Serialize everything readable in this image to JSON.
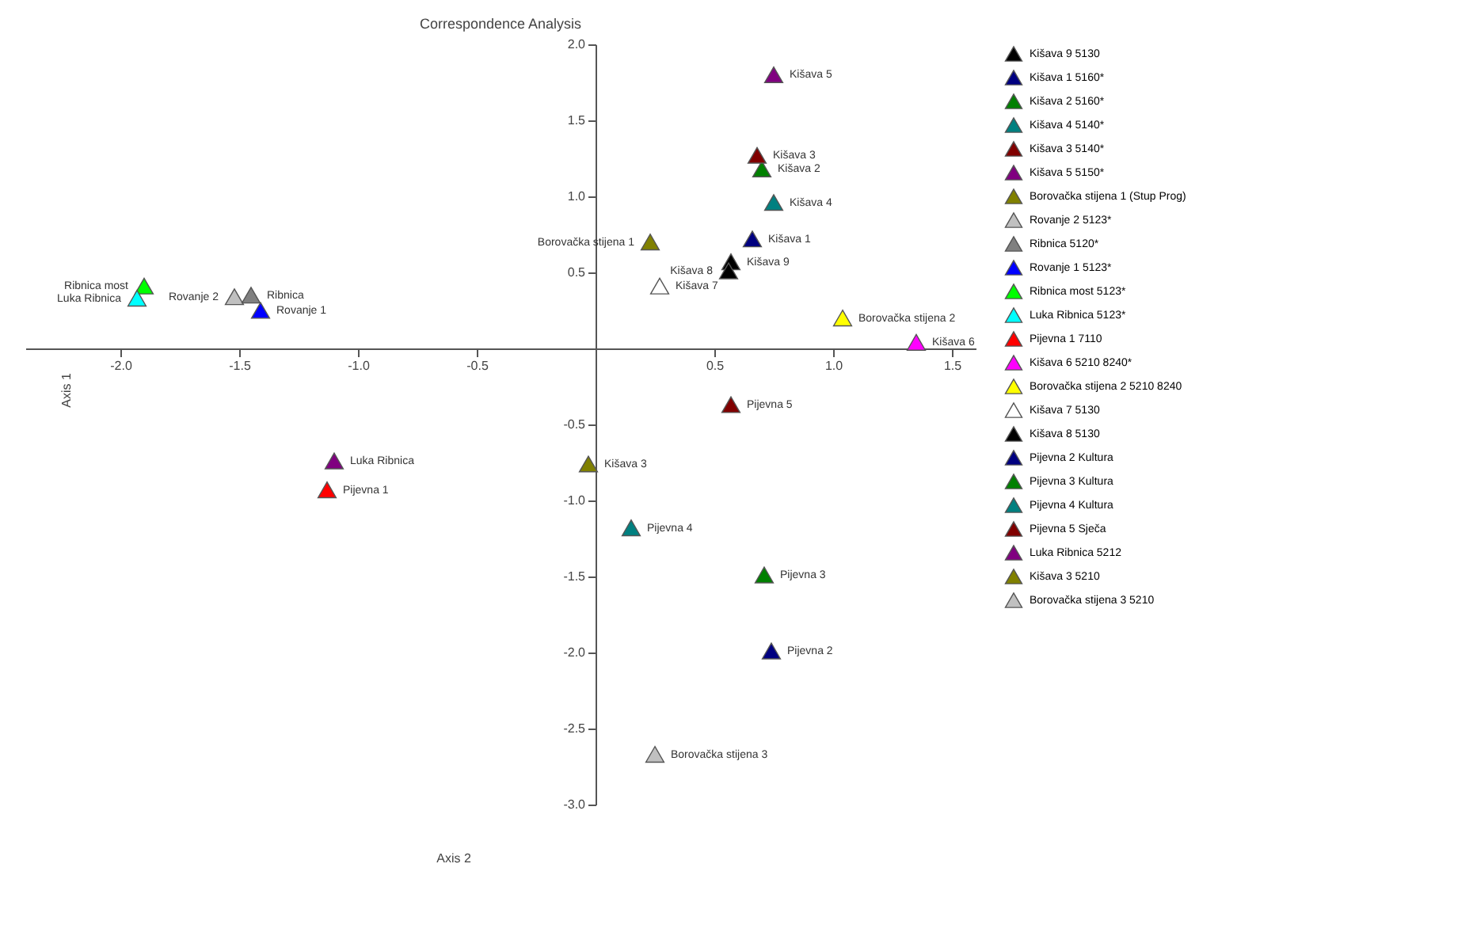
{
  "chart_data": {
    "type": "scatter",
    "title": "Correspondence Analysis",
    "xlabel": "Axis 2",
    "ylabel": "Axis 1",
    "marker": "triangle",
    "legend": "right",
    "xlim": [
      -2.4,
      1.6
    ],
    "ylim": [
      -3.0,
      2.0
    ],
    "xticks": [
      {
        "value": -2,
        "label": "-2.0"
      },
      {
        "value": -1.5,
        "label": "-1.5"
      },
      {
        "value": -1,
        "label": "-1.0"
      },
      {
        "value": -0.5,
        "label": "-0.5"
      },
      {
        "value": 0.5,
        "label": "0.5"
      },
      {
        "value": 1,
        "label": "1.0"
      },
      {
        "value": 1.5,
        "label": "1.5"
      }
    ],
    "yticks": [
      {
        "value": 2,
        "label": "2.0"
      },
      {
        "value": 1.5,
        "label": "1.5"
      },
      {
        "value": 1,
        "label": "1.0"
      },
      {
        "value": 0.5,
        "label": "0.5"
      },
      {
        "value": -0.5,
        "label": "-0.5"
      },
      {
        "value": -1,
        "label": "-1.0"
      },
      {
        "value": -1.5,
        "label": "-1.5"
      },
      {
        "value": -2,
        "label": "-2.0"
      },
      {
        "value": -2.5,
        "label": "-2.5"
      },
      {
        "value": -3,
        "label": "-3.0"
      }
    ],
    "series": [
      {
        "name": "Kišava 9 5130",
        "color": "#000000",
        "x": [
          0.57
        ],
        "values": [
          0.57
        ]
      },
      {
        "name": "Kišava 1 5160*",
        "color": "#000080",
        "x": [
          0.66
        ],
        "values": [
          0.72
        ]
      },
      {
        "name": "Kišava 2 5160*",
        "color": "#008000",
        "x": [
          0.7
        ],
        "values": [
          1.18
        ]
      },
      {
        "name": "Kišava 4 5140*",
        "color": "#008080",
        "x": [
          0.75
        ],
        "values": [
          0.96
        ]
      },
      {
        "name": "Kišava 3 5140*",
        "color": "#800000",
        "x": [
          0.68
        ],
        "values": [
          1.27
        ]
      },
      {
        "name": "Kišava 5 5150*",
        "color": "#800080",
        "x": [
          0.75
        ],
        "values": [
          1.8
        ]
      },
      {
        "name": "Borovačka stijena 1 (Stup Prog)",
        "color": "#808000",
        "x": [
          0.23
        ],
        "values": [
          0.7
        ]
      },
      {
        "name": "Rovanje 2 5123*",
        "color": "#c0c0c0",
        "x": [
          -1.52
        ],
        "values": [
          0.34
        ]
      },
      {
        "name": "Ribnica 5120*",
        "color": "#808080",
        "x": [
          -1.45
        ],
        "values": [
          0.35
        ]
      },
      {
        "name": "Rovanje 1 5123*",
        "color": "#0000ff",
        "x": [
          -1.41
        ],
        "values": [
          0.25
        ]
      },
      {
        "name": "Ribnica most 5123*",
        "color": "#00ff00",
        "x": [
          -1.9
        ],
        "values": [
          0.41
        ]
      },
      {
        "name": "Luka Ribnica 5123*",
        "color": "#00ffff",
        "x": [
          -1.93
        ],
        "values": [
          0.33
        ]
      },
      {
        "name": "Pijevna 1 7110",
        "color": "#ff0000",
        "x": [
          -1.13
        ],
        "values": [
          -0.93
        ]
      },
      {
        "name": "Kišava 6 5210 8240*",
        "color": "#ff00ff",
        "x": [
          1.35
        ],
        "values": [
          0.04
        ]
      },
      {
        "name": "Borovačka stijena 2 5210 8240",
        "color": "#ffff00",
        "x": [
          1.04
        ],
        "values": [
          0.2
        ]
      },
      {
        "name": "Kišava 7 5130",
        "color": "#ffffff",
        "x": [
          0.27
        ],
        "values": [
          0.41
        ]
      },
      {
        "name": "Kišava 8 5130",
        "color": "#000000",
        "x": [
          0.56
        ],
        "values": [
          0.51
        ]
      },
      {
        "name": "Pijevna 2 Kultura",
        "color": "#000080",
        "x": [
          0.74
        ],
        "values": [
          -1.99
        ]
      },
      {
        "name": "Pijevna 3 Kultura",
        "color": "#008000",
        "x": [
          0.71
        ],
        "values": [
          -1.49
        ]
      },
      {
        "name": "Pijevna 4 Kultura",
        "color": "#008080",
        "x": [
          0.15
        ],
        "values": [
          -1.18
        ]
      },
      {
        "name": "Pijevna 5 Sječa",
        "color": "#800000",
        "x": [
          0.57
        ],
        "values": [
          -0.37
        ]
      },
      {
        "name": "Luka Ribnica 5212",
        "color": "#800080",
        "x": [
          -1.1
        ],
        "values": [
          -0.74
        ]
      },
      {
        "name": "Kišava 3 5210",
        "color": "#808000",
        "x": [
          -0.03
        ],
        "values": [
          -0.76
        ]
      },
      {
        "name": "Borovačka stijena 3 5210",
        "color": "#c0c0c0",
        "x": [
          0.25
        ],
        "values": [
          -2.67
        ]
      }
    ],
    "annotations": [
      {
        "text": "Ribnica most",
        "x": -1.9,
        "y": 0.41
      },
      {
        "text": "Luka Ribnica",
        "x": -1.93,
        "y": 0.33
      },
      {
        "text": "Rovanje 2",
        "x": -1.52,
        "y": 0.34
      },
      {
        "text": "Ribnica",
        "x": -1.45,
        "y": 0.35
      },
      {
        "text": "Rovanje 1",
        "x": -1.41,
        "y": 0.25
      },
      {
        "text": "Luka Ribnica",
        "x": -1.1,
        "y": -0.74
      },
      {
        "text": "Pijevna 1",
        "x": -1.13,
        "y": -0.93
      },
      {
        "text": "Kišava 3",
        "x": -0.03,
        "y": -0.76
      },
      {
        "text": "Pijevna 4",
        "x": 0.15,
        "y": -1.18
      },
      {
        "text": "Borovačka stijena 3",
        "x": 0.25,
        "y": -2.67
      },
      {
        "text": "Pijevna 3",
        "x": 0.71,
        "y": -1.49
      },
      {
        "text": "Pijevna 2",
        "x": 0.74,
        "y": -1.99
      },
      {
        "text": "Pijevna 5",
        "x": 0.57,
        "y": -0.37
      },
      {
        "text": "Borovačka stijena 1",
        "x": 0.23,
        "y": 0.7
      },
      {
        "text": "Kišava 7",
        "x": 0.27,
        "y": 0.41
      },
      {
        "text": "Kišava 5",
        "x": 0.75,
        "y": 1.8
      },
      {
        "text": "Kišava 3",
        "x": 0.68,
        "y": 1.27
      },
      {
        "text": "Kišava 2",
        "x": 0.7,
        "y": 1.18
      },
      {
        "text": "Kišava 4",
        "x": 0.75,
        "y": 0.96
      },
      {
        "text": "Kišava 1",
        "x": 0.66,
        "y": 0.72
      },
      {
        "text": "Kišava 9",
        "x": 0.57,
        "y": 0.57
      },
      {
        "text": "Kišava 8",
        "x": 0.56,
        "y": 0.51
      },
      {
        "text": "Borovačka stijena 2",
        "x": 1.04,
        "y": 0.2
      },
      {
        "text": "Kišava 6",
        "x": 1.35,
        "y": 0.04
      }
    ]
  }
}
